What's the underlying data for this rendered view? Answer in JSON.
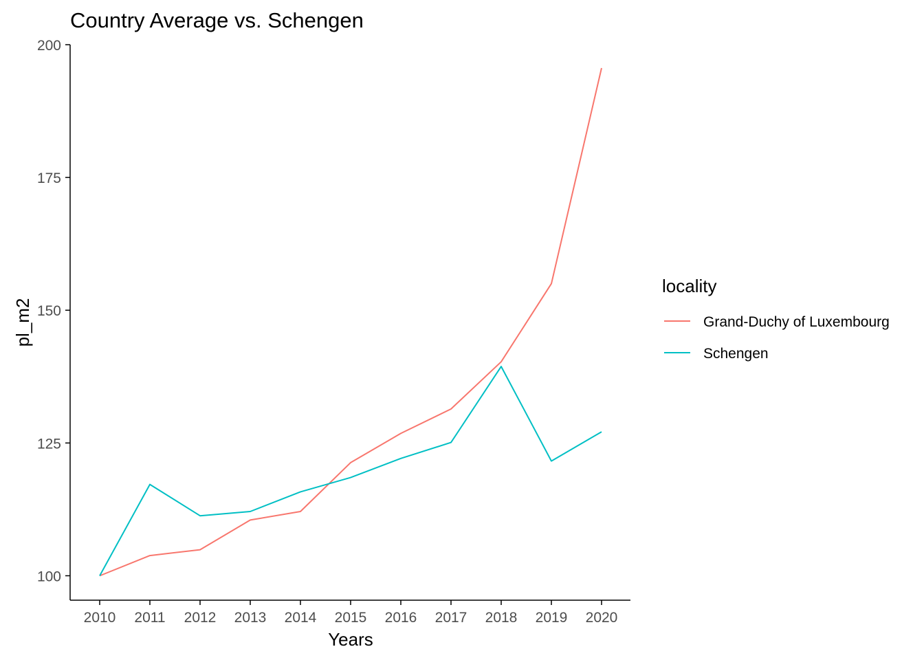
{
  "chart_data": {
    "type": "line",
    "title": "Country Average vs. Schengen",
    "xlabel": "Years",
    "ylabel": "pl_m2",
    "x": [
      2010,
      2011,
      2012,
      2013,
      2014,
      2015,
      2016,
      2017,
      2018,
      2019,
      2020
    ],
    "x_ticks": [
      "2010",
      "2011",
      "2012",
      "2013",
      "2014",
      "2015",
      "2016",
      "2017",
      "2018",
      "2019",
      "2020"
    ],
    "y_ticks": [
      "100",
      "125",
      "150",
      "175",
      "200"
    ],
    "ylim": [
      95.4,
      200
    ],
    "grid": false,
    "legend": {
      "title": "locality",
      "position": "right"
    },
    "series": [
      {
        "name": "Grand-Duchy of Luxembourg",
        "color": "#F8766D",
        "values": [
          100.0,
          103.8,
          104.9,
          110.5,
          112.1,
          121.3,
          126.8,
          131.4,
          140.3,
          155.0,
          195.6
        ]
      },
      {
        "name": "Schengen",
        "color": "#00BFC4",
        "values": [
          100.0,
          117.2,
          111.3,
          112.1,
          115.8,
          118.5,
          122.1,
          125.1,
          139.4,
          121.6,
          127.1
        ]
      }
    ]
  }
}
